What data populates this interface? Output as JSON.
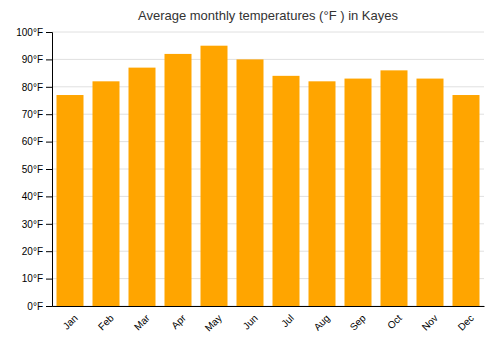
{
  "chart_data": {
    "type": "bar",
    "title": "Average monthly temperatures (°F ) in Kayes",
    "categories": [
      "Jan",
      "Feb",
      "Mar",
      "Apr",
      "May",
      "Jun",
      "Jul",
      "Aug",
      "Sep",
      "Oct",
      "Nov",
      "Dec"
    ],
    "values": [
      77,
      82,
      87,
      92,
      95,
      90,
      84,
      82,
      83,
      86,
      83,
      77
    ],
    "color": "#FFA500",
    "ylim": [
      0,
      100
    ],
    "yticks": [
      {
        "value": 0,
        "label": "0°F"
      },
      {
        "value": 10,
        "label": "10°F"
      },
      {
        "value": 20,
        "label": "20°F"
      },
      {
        "value": 30,
        "label": "30°F"
      },
      {
        "value": 40,
        "label": "40°F"
      },
      {
        "value": 50,
        "label": "50°F"
      },
      {
        "value": 60,
        "label": "60°F"
      },
      {
        "value": 70,
        "label": "70°F"
      },
      {
        "value": 80,
        "label": "80°F"
      },
      {
        "value": 90,
        "label": "90°F"
      },
      {
        "value": 100,
        "label": "100°F"
      }
    ],
    "grid": true
  }
}
